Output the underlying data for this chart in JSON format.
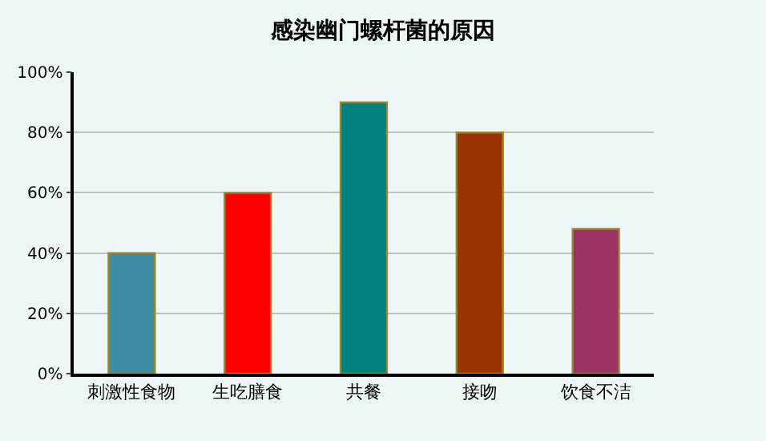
{
  "chart_data": {
    "type": "bar",
    "title": "感染幽门螺杆菌的原因",
    "categories": [
      "刺激性食物",
      "生吃膳食",
      "共餐",
      "接吻",
      "饮食不洁"
    ],
    "values": [
      40,
      60,
      90,
      80,
      48
    ],
    "colors": [
      "#3e8ca6",
      "#ff0000",
      "#008080",
      "#993300",
      "#993366"
    ],
    "ylim": [
      0,
      100
    ],
    "yticks": [
      {
        "value": 0,
        "label": "0%"
      },
      {
        "value": 20,
        "label": "20%"
      },
      {
        "value": 40,
        "label": "40%"
      },
      {
        "value": 60,
        "label": "60%"
      },
      {
        "value": 80,
        "label": "80%"
      },
      {
        "value": 100,
        "label": "100%"
      }
    ],
    "grid": "y"
  }
}
